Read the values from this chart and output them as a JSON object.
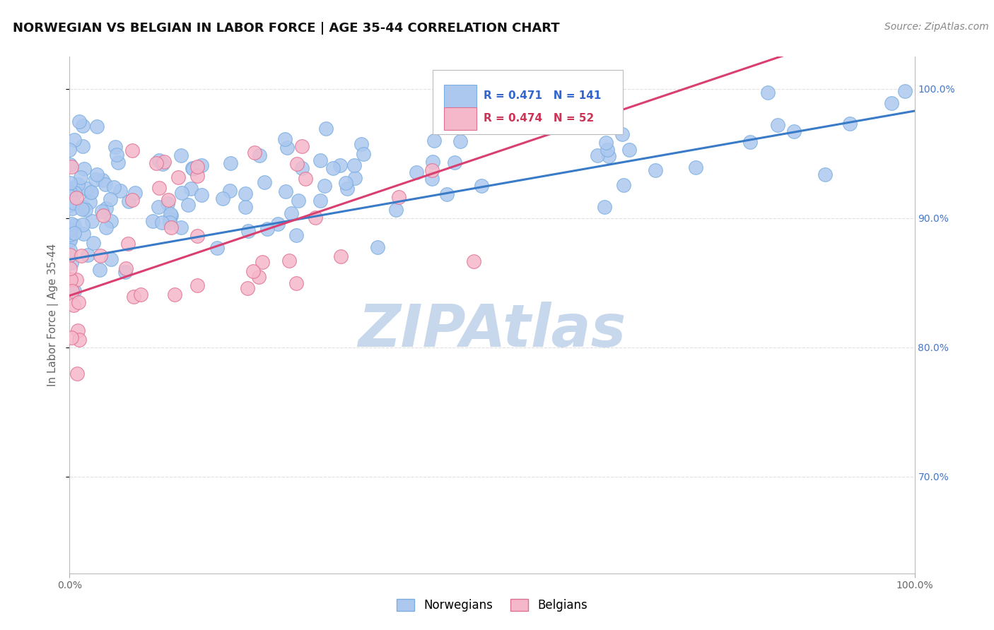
{
  "title": "NORWEGIAN VS BELGIAN IN LABOR FORCE | AGE 35-44 CORRELATION CHART",
  "source": "Source: ZipAtlas.com",
  "ylabel": "In Labor Force | Age 35-44",
  "xlim": [
    0.0,
    1.0
  ],
  "ylim": [
    0.625,
    1.025
  ],
  "norwegian_R": 0.471,
  "norwegian_N": 141,
  "belgian_R": 0.474,
  "belgian_N": 52,
  "norwegian_color": "#adc8ef",
  "norwegian_edge": "#7aaee0",
  "belgian_color": "#f5b8ca",
  "belgian_edge": "#e07090",
  "norwegian_line_color": "#3a7bc8",
  "belgian_line_color": "#d94070",
  "watermark": "ZIPAtlas",
  "watermark_color": "#c8d8ec",
  "legend_box_color_norwegian": "#adc8ef",
  "legend_box_color_belgian": "#f5b8ca",
  "ytick_labels_right": [
    "70.0%",
    "80.0%",
    "90.0%",
    "100.0%"
  ],
  "ytick_values_right": [
    0.7,
    0.8,
    0.9,
    1.0
  ],
  "title_fontsize": 13,
  "source_fontsize": 10,
  "axis_label_fontsize": 11,
  "tick_fontsize": 10,
  "legend_fontsize": 11,
  "watermark_fontsize": 60,
  "background_color": "#ffffff",
  "grid_color": "#cccccc",
  "grid_linestyle": "--",
  "grid_alpha": 0.6,
  "nor_line_intercept": 0.868,
  "nor_line_slope": 0.115,
  "bel_line_intercept": 0.84,
  "bel_line_slope": 0.22
}
